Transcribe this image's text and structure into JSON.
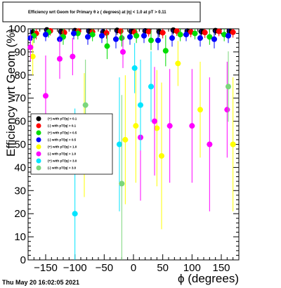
{
  "chart_data": {
    "type": "scatter",
    "title": "Efficiency wrt Geom for Primary  θ ≥ ( degrees) at |η| < 1.0 at pT > 0.11",
    "xlabel": "ϕ (degrees)",
    "ylabel": "Efficiency wrt Geom (%)",
    "xlim": [
      -180,
      180
    ],
    "ylim": [
      0,
      100
    ],
    "xticks": [
      -150,
      -100,
      -50,
      0,
      50,
      100,
      150
    ],
    "yticks": [
      0,
      10,
      20,
      30,
      40,
      50,
      60,
      70,
      80,
      90,
      100
    ],
    "xtick_labels": [
      "−150",
      "−100",
      "−50",
      "0",
      "50",
      "100",
      "150"
    ],
    "ytick_labels": [
      "0",
      "10",
      "20",
      "30",
      "40",
      "50",
      "60",
      "70",
      "80",
      "90",
      "100"
    ],
    "grid": false,
    "legend_position": "left-middle",
    "timestamp": "Thu May 20 16:02:05 2021",
    "series": [
      {
        "name": "(+) with pT/|q| > 0.1",
        "color": "#000000",
        "marker": "circle",
        "x": [
          -172,
          -148,
          -124,
          -100,
          -76,
          -52,
          -28,
          -4,
          20,
          44,
          68,
          92,
          116,
          140,
          164
        ],
        "y": [
          98.5,
          99.5,
          98.8,
          99.2,
          99.0,
          98.6,
          99.3,
          98.9,
          99.1,
          98.7,
          99.4,
          99.0,
          98.8,
          99.2,
          98.9
        ]
      },
      {
        "name": "(-) with pT/|q| > 0.1",
        "color": "#ff0000",
        "marker": "circle",
        "x": [
          -166,
          -142,
          -118,
          -94,
          -70,
          -46,
          -22,
          2,
          26,
          50,
          74,
          98,
          122,
          146,
          170
        ],
        "y": [
          98.0,
          99.1,
          98.4,
          99.0,
          98.7,
          98.2,
          99.0,
          98.5,
          98.8,
          98.3,
          99.0,
          98.6,
          98.4,
          98.9,
          98.5
        ]
      },
      {
        "name": "(+) with pT/|q| > 0.5",
        "color": "#00dd00",
        "marker": "circle",
        "x": [
          -170,
          -145,
          -120,
          -95,
          -70,
          -45,
          -20,
          5,
          30,
          55,
          80,
          105,
          130,
          155
        ],
        "y": [
          97.0,
          98.5,
          96.5,
          98.0,
          97.5,
          92.5,
          96.0,
          97.0,
          95.0,
          90.5,
          97.5,
          98.0,
          96.5,
          97.5
        ]
      },
      {
        "name": "(-) with pT/|q| > 0.5",
        "color": "#0000ff",
        "marker": "circle",
        "x": [
          -176,
          -150,
          -126,
          -102,
          -78,
          -54,
          -30,
          -6,
          18,
          42,
          66,
          90,
          114,
          138,
          162
        ],
        "y": [
          96.0,
          97.5,
          95.5,
          98.0,
          96.5,
          97.0,
          95.5,
          96.5,
          97.0,
          95.0,
          96.0,
          97.5,
          96.0,
          95.5,
          97.0
        ]
      },
      {
        "name": "(+) with pT/|q| > 1.0",
        "color": "#ffff00",
        "marker": "circle",
        "x": [
          -172,
          -84,
          -14,
          4,
          40,
          48,
          76,
          114,
          170
        ],
        "y": [
          88.0,
          54.0,
          52.0,
          58.0,
          57.0,
          45.0,
          85.0,
          65.0,
          50.0
        ]
      },
      {
        "name": "(-) with pT/|q| > 1.0",
        "color": "#ff00ff",
        "marker": "circle",
        "x": [
          -176,
          -150,
          -126,
          -104,
          -18,
          12,
          36,
          62,
          100,
          130,
          160
        ],
        "y": [
          92.0,
          71.0,
          87.0,
          88.0,
          90.0,
          53.0,
          60.0,
          58.0,
          58.0,
          50.0,
          65.0
        ]
      },
      {
        "name": "(+) with pT/|q| > 3.0",
        "color": "#00e5ff",
        "marker": "circle",
        "x": [
          -100,
          -24,
          2,
          12,
          30
        ],
        "y": [
          20.0,
          50.0,
          83.0,
          67.0,
          75.0
        ]
      },
      {
        "name": "(-) with pT/|q| > 3.0",
        "color": "#7bd67b",
        "marker": "circle",
        "x": [
          -82,
          -20,
          162
        ],
        "y": [
          67.0,
          33.0,
          75.0
        ]
      }
    ]
  }
}
